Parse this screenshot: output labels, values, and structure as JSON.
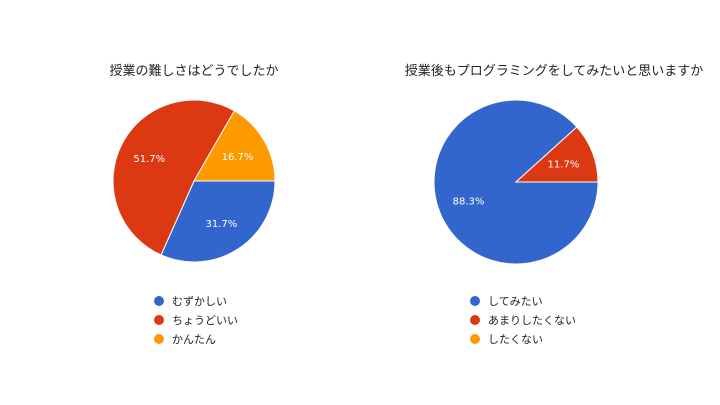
{
  "chart_data": [
    {
      "type": "pie",
      "title": "授業の難しさはどうでしたか",
      "slices": [
        {
          "label": "むずかしい",
          "value": 31.7,
          "display": "31.7%",
          "color": "#3366cc"
        },
        {
          "label": "ちょうどいい",
          "value": 51.7,
          "display": "51.7%",
          "color": "#dc3912"
        },
        {
          "label": "かんたん",
          "value": 16.7,
          "display": "16.7%",
          "color": "#ff9900"
        }
      ],
      "legend_position": "bottom"
    },
    {
      "type": "pie",
      "title": "授業後もプログラミングをしてみたいと思いますか",
      "slices": [
        {
          "label": "してみたい",
          "value": 88.3,
          "display": "88.3%",
          "color": "#3366cc"
        },
        {
          "label": "あまりしたくない",
          "value": 11.7,
          "display": "11.7%",
          "color": "#dc3912"
        },
        {
          "label": "したくない",
          "value": 0,
          "display": "",
          "color": "#ff9900"
        }
      ],
      "legend_position": "bottom"
    }
  ]
}
